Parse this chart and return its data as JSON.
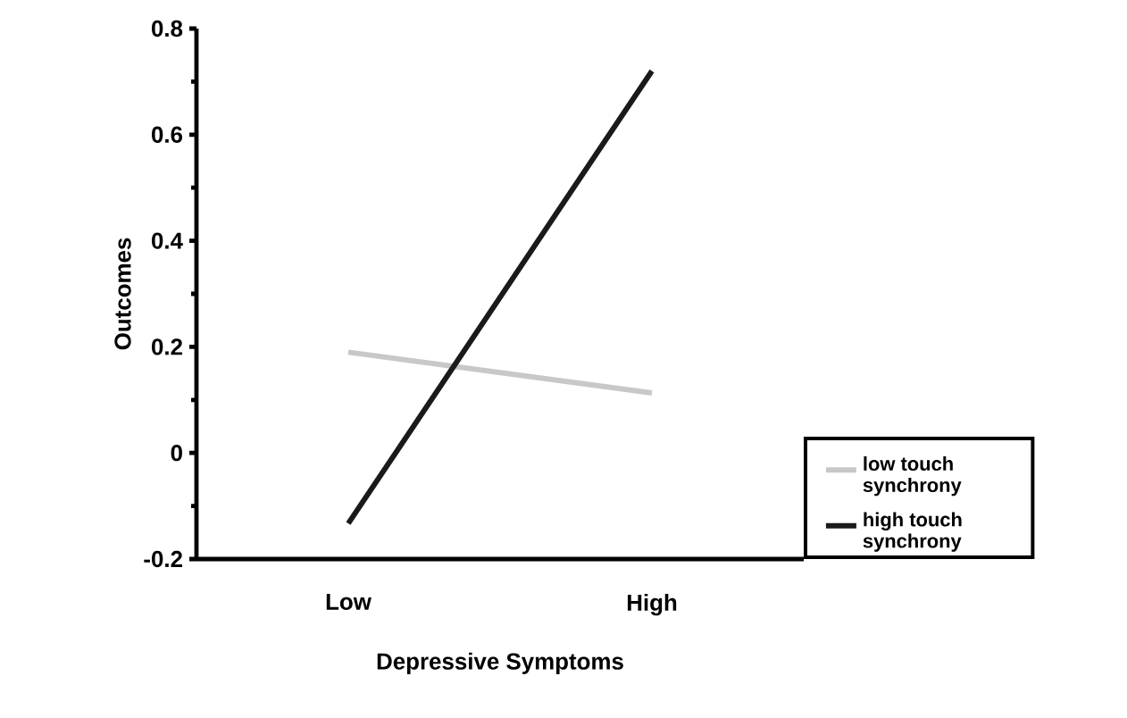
{
  "chart_data": {
    "type": "line",
    "xlabel": "Depressive Symptoms",
    "ylabel": "Outcomes",
    "categories": [
      "Low",
      "High"
    ],
    "series": [
      {
        "name": "low touch synchrony",
        "color": "#c8c8c8",
        "values": [
          0.19,
          0.113
        ]
      },
      {
        "name": "high touch synchrony",
        "color": "#1a1a1a",
        "values": [
          -0.133,
          0.72
        ]
      }
    ],
    "ylim": [
      -0.2,
      0.8
    ],
    "yticks": [
      -0.2,
      0,
      0.2,
      0.4,
      0.6,
      0.8
    ],
    "grid": false,
    "legend": "bottom right",
    "marker": "none",
    "line_style": "solid"
  }
}
